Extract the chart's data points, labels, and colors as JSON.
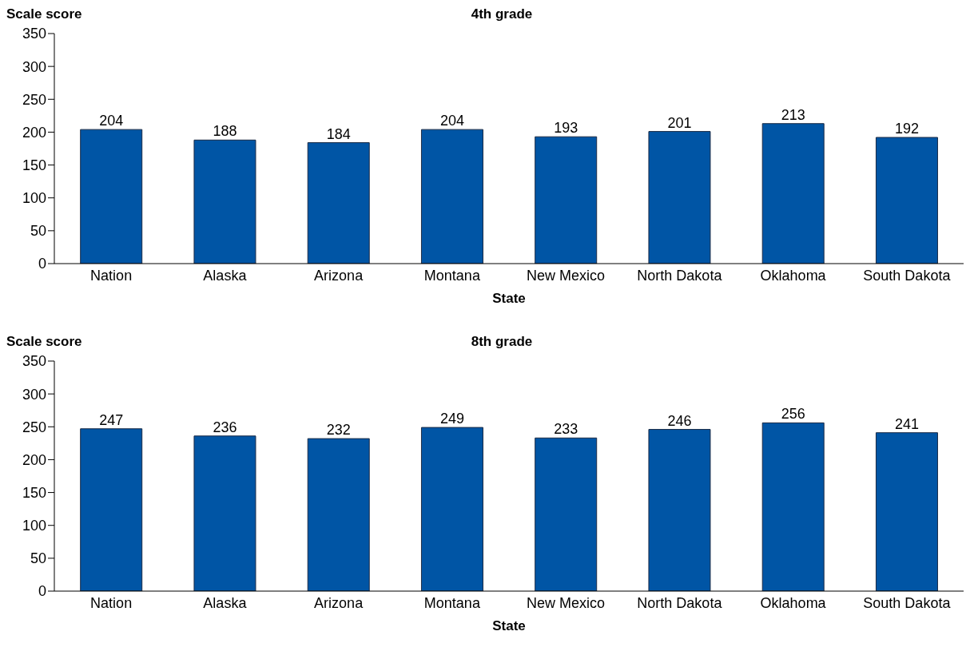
{
  "chart_data": [
    {
      "type": "bar",
      "title": "4th grade",
      "ylabel": "Scale score",
      "xlabel": "State",
      "categories": [
        "Nation",
        "Alaska",
        "Arizona",
        "Montana",
        "New Mexico",
        "North Dakota",
        "Oklahoma",
        "South Dakota"
      ],
      "values": [
        204,
        188,
        184,
        204,
        193,
        201,
        213,
        192
      ],
      "color": "#0055a5",
      "ylim": [
        0,
        350
      ],
      "yticks": [
        0,
        50,
        100,
        150,
        200,
        250,
        300,
        350
      ],
      "data_labels": true
    },
    {
      "type": "bar",
      "title": "8th grade",
      "ylabel": "Scale score",
      "xlabel": "State",
      "categories": [
        "Nation",
        "Alaska",
        "Arizona",
        "Montana",
        "New Mexico",
        "North Dakota",
        "Oklahoma",
        "South Dakota"
      ],
      "values": [
        247,
        236,
        232,
        249,
        233,
        246,
        256,
        241
      ],
      "color": "#0055a5",
      "ylim": [
        0,
        350
      ],
      "yticks": [
        0,
        50,
        100,
        150,
        200,
        250,
        300,
        350
      ],
      "data_labels": true
    }
  ]
}
